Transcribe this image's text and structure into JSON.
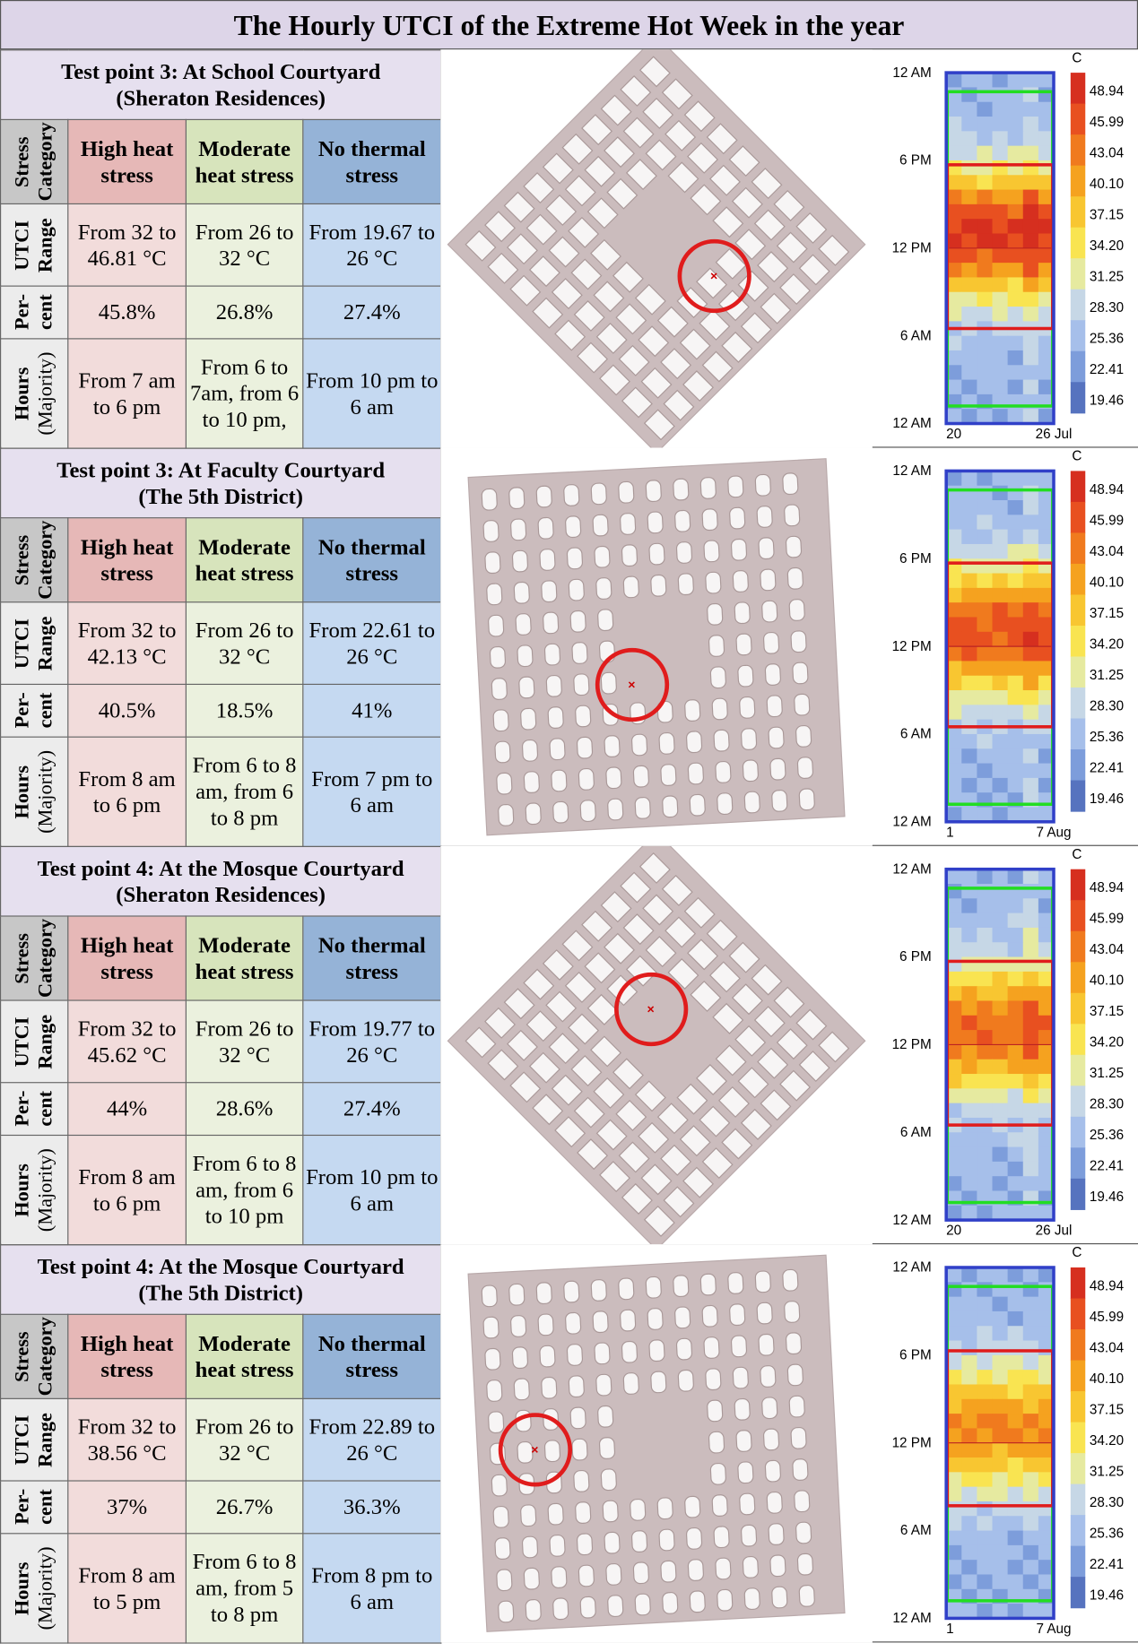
{
  "title": "The Hourly UTCI of the Extreme Hot Week in the year",
  "heatmap": {
    "y_labels": [
      "12 AM",
      "6 PM",
      "12 PM",
      "6 AM",
      "12 AM"
    ],
    "unit": "C",
    "legend": [
      "48.94",
      "45.99",
      "43.04",
      "40.10",
      "37.15",
      "34.20",
      "31.25",
      "28.30",
      "25.36",
      "22.41",
      "19.46"
    ]
  },
  "panels": [
    {
      "heading": "Test point 3: At School Courtyard",
      "subheading": "(Sheraton Residences)",
      "row_labels": [
        [
          "Stress",
          "Category"
        ],
        [
          "UTCI",
          "Range"
        ],
        [
          "Per-",
          "cent"
        ],
        [
          "Hours",
          "(Majority)"
        ]
      ],
      "columns": [
        "High heat stress",
        "Moderate heat stress",
        "No thermal stress"
      ],
      "ranges": [
        "From 32 to 46.81 °C",
        "From 26 to 32 °C",
        "From 19.67 to 26 °C"
      ],
      "percents": [
        "45.8%",
        "26.8%",
        "27.4%"
      ],
      "hours": [
        "From 7 am to 6 pm",
        "From 6 to 7am, from 6 to 10 pm,",
        "From 10 pm to 6 am"
      ],
      "x_labels": [
        "20",
        "26 Jul"
      ]
    },
    {
      "heading": "Test point 3: At Faculty Courtyard",
      "subheading": "(The 5th District)",
      "row_labels": [
        [
          "Stress",
          "Category"
        ],
        [
          "UTCI",
          "Range"
        ],
        [
          "Per-",
          "cent"
        ],
        [
          "Hours",
          "(Majority)"
        ]
      ],
      "columns": [
        "High heat stress",
        "Moderate heat stress",
        "No thermal stress"
      ],
      "ranges": [
        "From 32 to 42.13 °C",
        "From 26 to 32 °C",
        "From 22.61 to 26 °C"
      ],
      "percents": [
        "40.5%",
        "18.5%",
        "41%"
      ],
      "hours": [
        "From 8 am to 6 pm",
        "From 6 to 8 am, from 6 to 8 pm",
        "From 7 pm to 6 am"
      ],
      "x_labels": [
        "1",
        "7 Aug"
      ]
    },
    {
      "heading": "Test point 4: At the Mosque Courtyard",
      "subheading": "(Sheraton Residences)",
      "row_labels": [
        [
          "Stress",
          "Category"
        ],
        [
          "UTCI",
          "Range"
        ],
        [
          "Per-",
          "cent"
        ],
        [
          "Hours",
          "(Majority)"
        ]
      ],
      "columns": [
        "High heat stress",
        "Moderate heat stress",
        "No thermal stress"
      ],
      "ranges": [
        "From 32 to 45.62 °C",
        "From 26 to 32 °C",
        "From 19.77 to 26 °C"
      ],
      "percents": [
        "44%",
        "28.6%",
        "27.4%"
      ],
      "hours": [
        "From 8 am to 6 pm",
        "From 6 to 8 am, from 6 to 10 pm",
        "From 10 pm to 6 am"
      ],
      "x_labels": [
        "20",
        "26 Jul"
      ]
    },
    {
      "heading": "Test point 4: At the Mosque Courtyard",
      "subheading": "(The 5th District)",
      "row_labels": [
        [
          "Stress",
          "Category"
        ],
        [
          "UTCI",
          "Range"
        ],
        [
          "Per-",
          "cent"
        ],
        [
          "Hours",
          "(Majority)"
        ]
      ],
      "columns": [
        "High heat stress",
        "Moderate heat stress",
        "No thermal stress"
      ],
      "ranges": [
        "From 32 to 38.56 °C",
        "From 26 to 32 °C",
        "From 22.89 to 26 °C"
      ],
      "percents": [
        "37%",
        "26.7%",
        "36.3%"
      ],
      "hours": [
        "From 8 am to 5 pm",
        "From 6 to 8 am, from 5 to 8 pm",
        "From 8 pm to 6 am"
      ],
      "x_labels": [
        "1",
        "7 Aug"
      ]
    }
  ]
}
